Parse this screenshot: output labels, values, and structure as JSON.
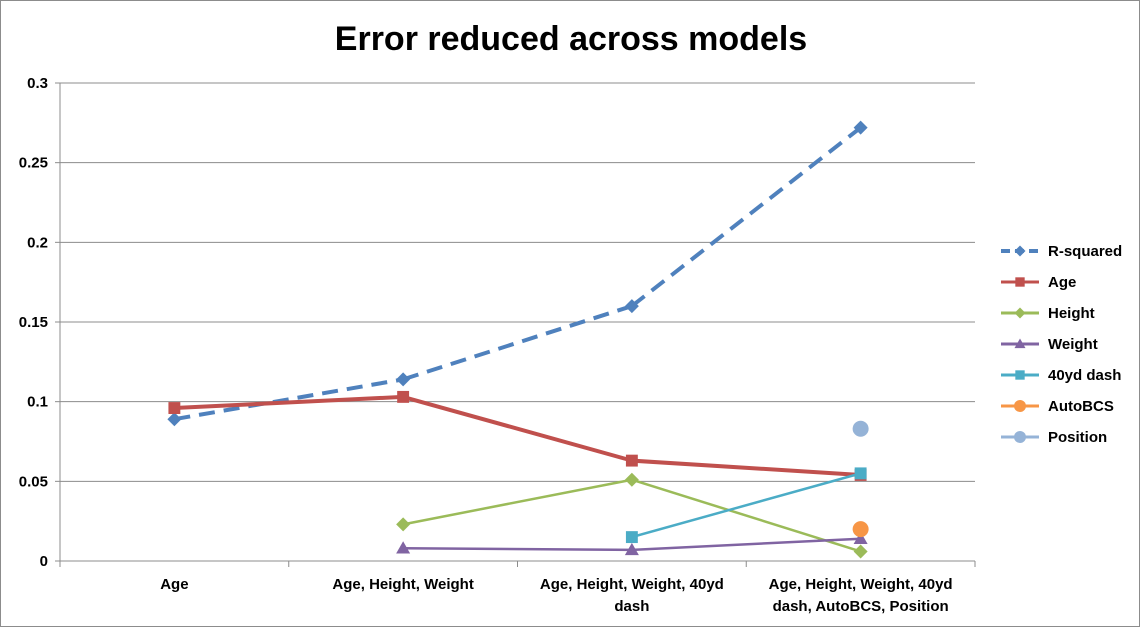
{
  "chart_data": {
    "type": "line",
    "title": "Error reduced across models",
    "xlabel": "",
    "ylabel": "",
    "ylim": [
      0,
      0.3
    ],
    "yticks": [
      "0",
      "0.05",
      "0.1",
      "0.15",
      "0.2",
      "0.25",
      "0.3"
    ],
    "ytick_values": [
      0,
      0.05,
      0.1,
      0.15,
      0.2,
      0.25,
      0.3
    ],
    "grid": true,
    "legend_position": "right",
    "categories": [
      [
        "Age"
      ],
      [
        "Age, Height, Weight"
      ],
      [
        "Age, Height, Weight, 40yd",
        "dash"
      ],
      [
        "Age, Height, Weight, 40yd",
        "dash, AutoBCS, Position"
      ]
    ],
    "series": [
      {
        "name": "R-squared",
        "color": "#4F81BD",
        "marker": "diamond",
        "dashed": true,
        "values": [
          0.089,
          0.114,
          0.16,
          0.272
        ]
      },
      {
        "name": "Age",
        "color": "#C0504D",
        "marker": "square",
        "dashed": false,
        "values": [
          0.096,
          0.103,
          0.063,
          0.054
        ]
      },
      {
        "name": "Height",
        "color": "#9BBB59",
        "marker": "diamond",
        "dashed": false,
        "values": [
          null,
          0.023,
          0.051,
          0.006
        ]
      },
      {
        "name": "Weight",
        "color": "#8064A2",
        "marker": "triangle",
        "dashed": false,
        "values": [
          null,
          0.008,
          0.007,
          0.014
        ]
      },
      {
        "name": "40yd dash",
        "color": "#4BACC6",
        "marker": "square",
        "dashed": false,
        "values": [
          null,
          null,
          0.015,
          0.055
        ]
      },
      {
        "name": "AutoBCS",
        "color": "#F79646",
        "marker": "circle",
        "dashed": false,
        "values": [
          null,
          null,
          null,
          0.02
        ]
      },
      {
        "name": "Position",
        "color": "#95B3D7",
        "marker": "circle",
        "dashed": false,
        "values": [
          null,
          null,
          null,
          0.083
        ]
      }
    ]
  }
}
